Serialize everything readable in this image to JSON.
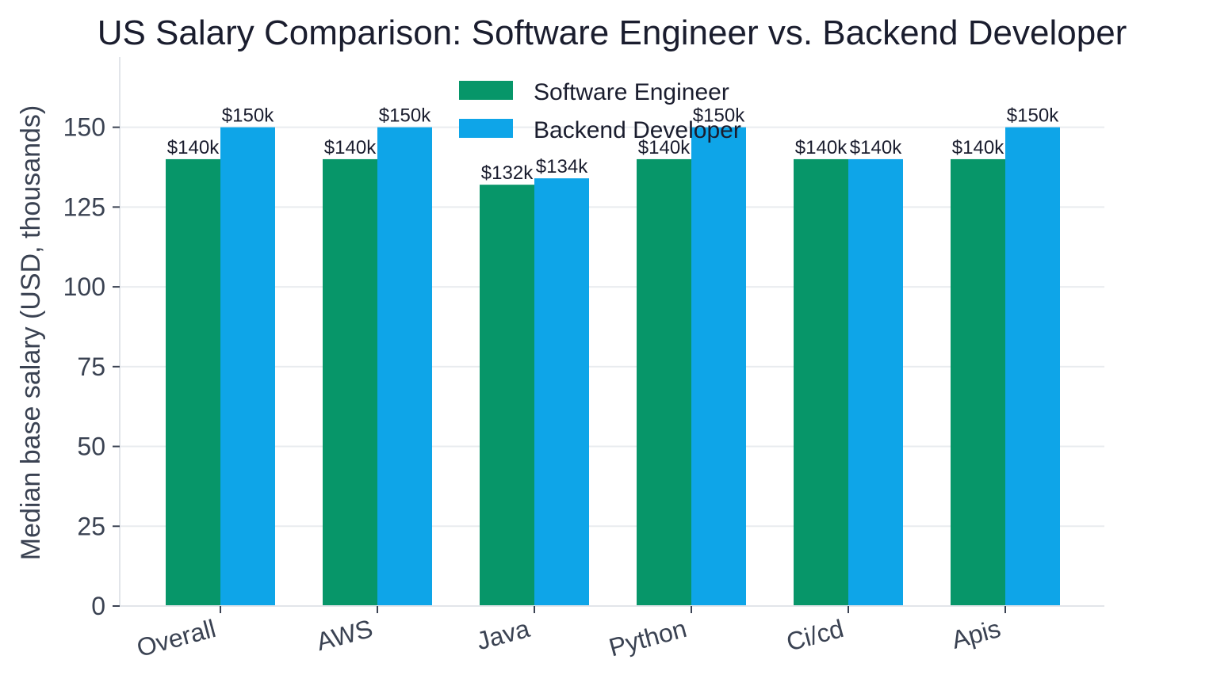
{
  "chart_data": {
    "type": "bar",
    "title": "US Salary Comparison: Software Engineer vs. Backend Developer",
    "xlabel": "",
    "ylabel": "Median base salary (USD, thousands)",
    "ylim": [
      0,
      172
    ],
    "yticks": [
      0,
      25,
      50,
      75,
      100,
      125,
      150
    ],
    "grid": true,
    "legend_position": "top-center",
    "categories": [
      "Overall",
      "AWS",
      "Java",
      "Python",
      "Ci/cd",
      "Apis"
    ],
    "series": [
      {
        "name": "Software Engineer",
        "color": "#079669",
        "values": [
          140,
          140,
          132,
          140,
          140,
          140
        ],
        "labels": [
          "$140k",
          "$140k",
          "$132k",
          "$140k",
          "$140k",
          "$140k"
        ]
      },
      {
        "name": "Backend Developer",
        "color": "#0ea5e8",
        "values": [
          150,
          150,
          134,
          150,
          140,
          150
        ],
        "labels": [
          "$150k",
          "$150k",
          "$134k",
          "$150k",
          "$140k",
          "$150k"
        ]
      }
    ]
  }
}
